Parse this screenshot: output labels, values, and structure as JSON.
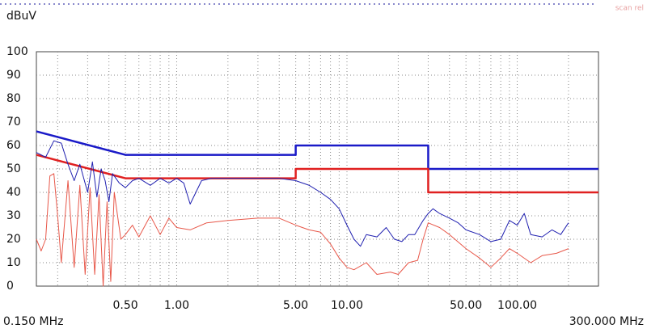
{
  "chart_data": {
    "type": "line",
    "header_note": "scan rel",
    "y_label": "dBuV",
    "log_x": true,
    "grid": true,
    "xlim": [
      0.15,
      300
    ],
    "ylim": [
      0,
      100
    ],
    "yticks": [
      0,
      10,
      20,
      30,
      40,
      50,
      60,
      70,
      80,
      90,
      100
    ],
    "xticks": [
      {
        "value": 0.15,
        "label": "0.150 MHz"
      },
      {
        "value": 0.5,
        "label": "0.50"
      },
      {
        "value": 1,
        "label": "1.00"
      },
      {
        "value": 5,
        "label": "5.00"
      },
      {
        "value": 10,
        "label": "10.00"
      },
      {
        "value": 50,
        "label": "50.00"
      },
      {
        "value": 100,
        "label": "100.00"
      },
      {
        "value": 300,
        "label": "300.000 MHz"
      }
    ],
    "x_minor_grid": [
      0.2,
      0.3,
      0.4,
      0.6,
      0.7,
      0.8,
      0.9,
      2,
      3,
      4,
      6,
      7,
      8,
      9,
      20,
      30,
      40,
      60,
      70,
      80,
      90,
      200
    ],
    "series": [
      {
        "color": "#1a1ac8",
        "width": 2.5,
        "x": [
          0.15,
          0.5,
          5,
          5,
          30,
          30,
          300
        ],
        "values": [
          66,
          56,
          56,
          60,
          60,
          50,
          50
        ]
      },
      {
        "color": "#e02020",
        "width": 2.5,
        "x": [
          0.15,
          0.5,
          5,
          5,
          30,
          30,
          300
        ],
        "values": [
          56,
          46,
          46,
          50,
          50,
          40,
          40
        ]
      },
      {
        "color": "#2020b0",
        "width": 1,
        "x": [
          0.15,
          0.17,
          0.19,
          0.21,
          0.23,
          0.25,
          0.27,
          0.3,
          0.32,
          0.34,
          0.36,
          0.38,
          0.4,
          0.42,
          0.46,
          0.5,
          0.55,
          0.6,
          0.7,
          0.8,
          0.9,
          1,
          1.1,
          1.2,
          1.4,
          1.6,
          2,
          3,
          4,
          5,
          6,
          7,
          8,
          9,
          10,
          11,
          12,
          13,
          15,
          17,
          19,
          21,
          23,
          25,
          28,
          30,
          32,
          35,
          40,
          45,
          50,
          60,
          70,
          80,
          90,
          100,
          110,
          120,
          140,
          160,
          180,
          200
        ],
        "values": [
          57,
          55,
          62,
          61,
          52,
          45,
          52,
          40,
          53,
          38,
          50,
          45,
          36,
          48,
          44,
          42,
          45,
          46,
          43,
          46,
          44,
          46,
          44,
          35,
          45,
          46,
          46,
          46,
          46,
          45,
          43,
          40,
          37,
          33,
          26,
          20,
          17,
          22,
          21,
          25,
          20,
          19,
          22,
          22,
          28,
          31,
          33,
          31,
          29,
          27,
          24,
          22,
          19,
          20,
          28,
          26,
          31,
          22,
          21,
          24,
          22,
          27
        ]
      },
      {
        "color": "#e8584a",
        "width": 1,
        "x": [
          0.15,
          0.16,
          0.17,
          0.18,
          0.19,
          0.2,
          0.21,
          0.23,
          0.25,
          0.27,
          0.29,
          0.31,
          0.33,
          0.35,
          0.37,
          0.39,
          0.41,
          0.43,
          0.47,
          0.5,
          0.55,
          0.6,
          0.7,
          0.8,
          0.9,
          1,
          1.2,
          1.5,
          2,
          3,
          4,
          5,
          6,
          7,
          8,
          9,
          10,
          11,
          13,
          15,
          18,
          20,
          23,
          26,
          28,
          30,
          35,
          40,
          50,
          60,
          70,
          80,
          90,
          100,
          120,
          140,
          170,
          200
        ],
        "values": [
          20,
          15,
          20,
          47,
          48,
          30,
          10,
          45,
          8,
          43,
          5,
          42,
          5,
          39,
          0,
          36,
          2,
          40,
          20,
          22,
          26,
          21,
          30,
          22,
          29,
          25,
          24,
          27,
          28,
          29,
          29,
          26,
          24,
          23,
          18,
          12,
          8,
          7,
          10,
          5,
          6,
          5,
          10,
          11,
          20,
          27,
          25,
          22,
          16,
          12,
          8,
          12,
          16,
          14,
          10,
          13,
          14,
          16
        ]
      }
    ]
  }
}
